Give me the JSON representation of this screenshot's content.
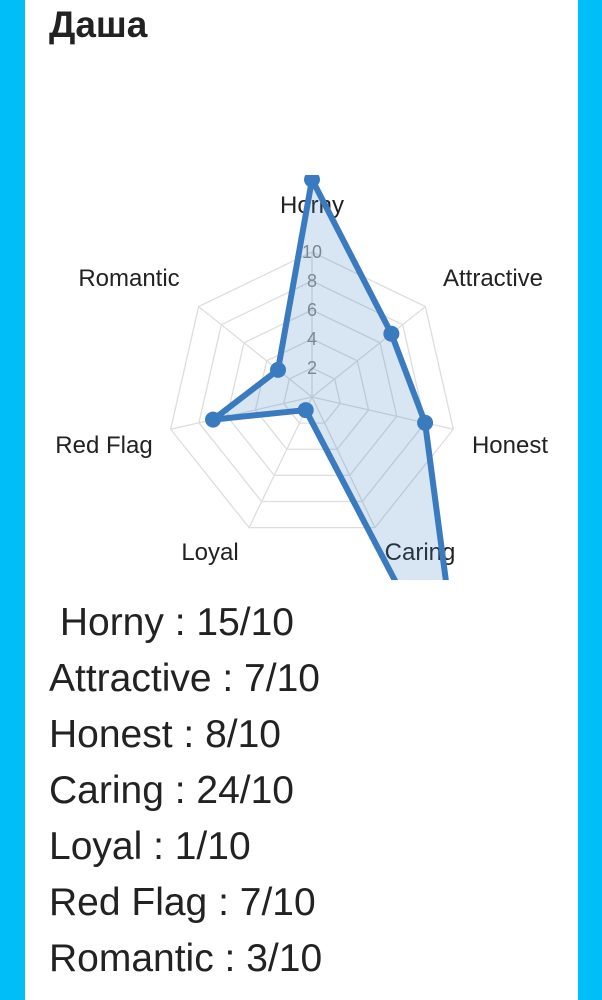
{
  "header": {
    "title": "Даша"
  },
  "chart_data": {
    "type": "radar",
    "categories": [
      "Horny",
      "Attractive",
      "Honest",
      "Caring",
      "Loyal",
      "Red Flag",
      "Romantic"
    ],
    "values": [
      15,
      7,
      8,
      24,
      1,
      7,
      3
    ],
    "rlim": [
      0,
      10
    ],
    "ticks": [
      "2",
      "4",
      "6",
      "8",
      "10"
    ],
    "grid": true,
    "color": "#3a7bbf",
    "fill": "rgba(58,123,191,0.2)"
  },
  "scores": [
    " Horny : 15/10",
    "Attractive : 7/10",
    "Honest : 8/10",
    "Caring : 24/10",
    "Loyal : 1/10",
    "Red Flag : 7/10",
    "Romantic : 3/10"
  ]
}
